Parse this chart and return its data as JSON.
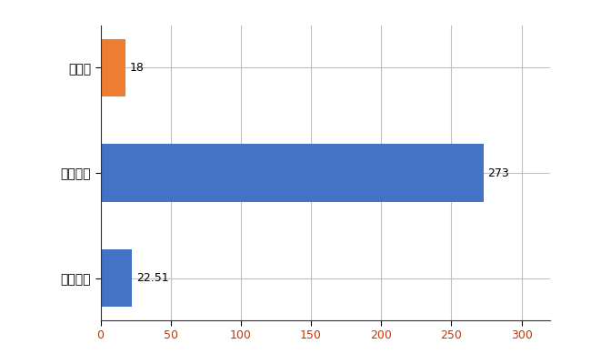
{
  "categories": [
    "全国平均",
    "全国最大",
    "大分県"
  ],
  "values": [
    22.51,
    273,
    18
  ],
  "bar_colors": [
    "#4472c4",
    "#4472c4",
    "#ed7d31"
  ],
  "labels": [
    "22.51",
    "273",
    "18"
  ],
  "xlim": [
    0,
    320
  ],
  "xticks": [
    0,
    50,
    100,
    150,
    200,
    250,
    300
  ],
  "background_color": "#ffffff",
  "grid_color": "#c0c0c0",
  "bar_height": 0.55,
  "xlabel_color": "#c0392b",
  "label_fontsize": 9,
  "ytick_fontsize": 10
}
